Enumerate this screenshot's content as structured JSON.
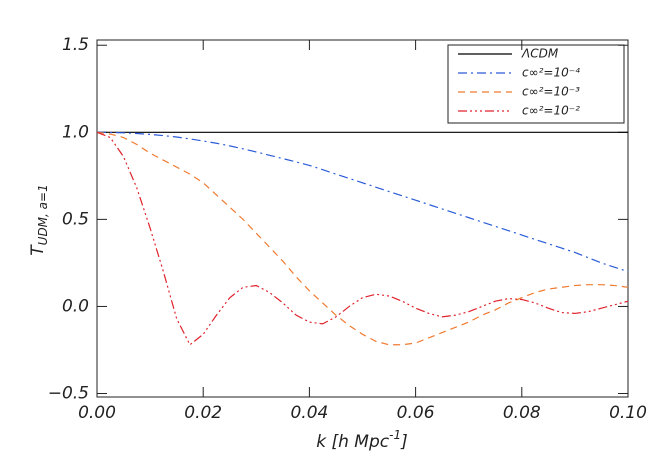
{
  "chart_data": {
    "type": "line",
    "y_label": "T",
    "y_label_sub": "UDM, a=1",
    "x_label": "k [h Mpc",
    "x_label_sup": "-1",
    "x_label_end": "]",
    "x": [
      0,
      0.0025,
      0.005,
      0.0075,
      0.01,
      0.0125,
      0.015,
      0.0175,
      0.02,
      0.0225,
      0.025,
      0.0275,
      0.03,
      0.0325,
      0.035,
      0.0375,
      0.04,
      0.0425,
      0.045,
      0.0475,
      0.05,
      0.0525,
      0.055,
      0.0575,
      0.06,
      0.0625,
      0.065,
      0.0675,
      0.07,
      0.0725,
      0.075,
      0.0775,
      0.08,
      0.0825,
      0.085,
      0.0875,
      0.09,
      0.0925,
      0.095,
      0.0975,
      0.1
    ],
    "series": [
      {
        "name": "ΛCDM",
        "color": "#000000",
        "dash": "solid",
        "values": [
          1,
          1,
          1,
          1,
          1,
          1,
          1,
          1,
          1,
          1,
          1,
          1,
          1,
          1,
          1,
          1,
          1,
          1,
          1,
          1,
          1,
          1,
          1,
          1,
          1,
          1,
          1,
          1,
          1,
          1,
          1,
          1,
          1,
          1,
          1,
          1,
          1,
          1,
          1,
          1,
          1
        ]
      },
      {
        "name": "c∞²=10⁻⁴",
        "color": "#2a5bd7",
        "dash": "dashdot",
        "values": [
          1.0,
          0.999,
          0.997,
          0.993,
          0.988,
          0.981,
          0.973,
          0.962,
          0.95,
          0.937,
          0.922,
          0.905,
          0.887,
          0.868,
          0.849,
          0.83,
          0.81,
          0.785,
          0.76,
          0.735,
          0.71,
          0.685,
          0.66,
          0.635,
          0.61,
          0.585,
          0.56,
          0.535,
          0.51,
          0.485,
          0.46,
          0.435,
          0.41,
          0.385,
          0.36,
          0.335,
          0.31,
          0.28,
          0.25,
          0.225,
          0.2
        ]
      },
      {
        "name": "c∞²=10⁻³",
        "color": "#f07a30",
        "dash": "dashed",
        "values": [
          1.0,
          0.99,
          0.97,
          0.93,
          0.88,
          0.84,
          0.8,
          0.76,
          0.71,
          0.64,
          0.57,
          0.5,
          0.42,
          0.34,
          0.26,
          0.17,
          0.09,
          0.02,
          -0.05,
          -0.11,
          -0.16,
          -0.2,
          -0.22,
          -0.22,
          -0.21,
          -0.18,
          -0.15,
          -0.12,
          -0.09,
          -0.05,
          -0.02,
          0.02,
          0.05,
          0.08,
          0.1,
          0.11,
          0.12,
          0.125,
          0.125,
          0.12,
          0.11
        ]
      },
      {
        "name": "c∞²=10⁻²",
        "color": "#e0222c",
        "dash": "dashdotdotdot",
        "values": [
          1.0,
          0.97,
          0.86,
          0.68,
          0.45,
          0.2,
          -0.07,
          -0.22,
          -0.16,
          -0.05,
          0.05,
          0.11,
          0.12,
          0.08,
          0.02,
          -0.05,
          -0.09,
          -0.1,
          -0.06,
          0.0,
          0.05,
          0.07,
          0.06,
          0.03,
          -0.01,
          -0.04,
          -0.06,
          -0.05,
          -0.03,
          0.0,
          0.03,
          0.045,
          0.04,
          0.02,
          -0.01,
          -0.035,
          -0.04,
          -0.03,
          -0.01,
          0.01,
          0.03
        ]
      }
    ],
    "xlim": [
      0,
      0.1
    ],
    "xticks": [
      {
        "value": 0,
        "label": "0.00"
      },
      {
        "value": 0.02,
        "label": "0.02"
      },
      {
        "value": 0.04,
        "label": "0.04"
      },
      {
        "value": 0.06,
        "label": "0.06"
      },
      {
        "value": 0.08,
        "label": "0.08"
      },
      {
        "value": 0.1,
        "label": "0.10"
      }
    ],
    "ylim": [
      -0.52,
      1.53
    ],
    "yticks": [
      {
        "value": -0.5,
        "label": "−0.5"
      },
      {
        "value": 0,
        "label": "0.0"
      },
      0.5,
      {
        "value": 1,
        "label": "1.0"
      },
      1.5
    ],
    "legend": "upper right",
    "grid": false
  }
}
